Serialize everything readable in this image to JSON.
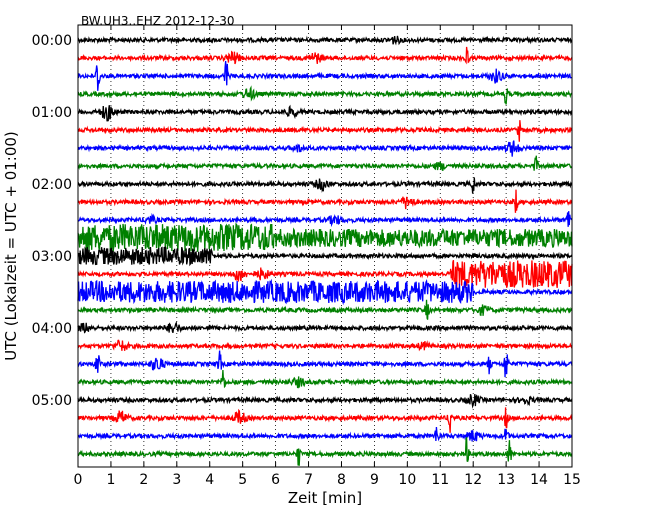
{
  "chart_data": {
    "type": "line",
    "title": "BW.UH3..EHZ 2012-12-30",
    "xlabel": "Zeit  [min]",
    "ylabel": "UTC (Lokalzeit = UTC + 01:00)",
    "xlim": [
      0,
      15
    ],
    "x_ticks": [
      "0",
      "1",
      "2",
      "3",
      "4",
      "5",
      "6",
      "7",
      "8",
      "9",
      "10",
      "11",
      "12",
      "13",
      "14",
      "15"
    ],
    "y_ticks": [
      {
        "label": "00:00",
        "line": 0
      },
      {
        "label": "01:00",
        "line": 4
      },
      {
        "label": "02:00",
        "line": 8
      },
      {
        "label": "03:00",
        "line": 12
      },
      {
        "label": "04:00",
        "line": 16
      },
      {
        "label": "05:00",
        "line": 20
      }
    ],
    "grid": "vertical dotted at each minute",
    "lines_per_hour": 4,
    "line_duration_min": 15,
    "colors": [
      "#000000",
      "#ff0000",
      "#0000ff",
      "#008000"
    ],
    "rows": [
      {
        "start": "00:00",
        "color_index": 0,
        "baseline": 2,
        "events": [
          {
            "t": 9.6,
            "amp": 3
          }
        ]
      },
      {
        "start": "00:15",
        "color_index": 1,
        "baseline": 2,
        "events": [
          {
            "t": 4.7,
            "amp": 6
          },
          {
            "t": 7.2,
            "amp": 5
          },
          {
            "t": 11.8,
            "amp": 12
          }
        ]
      },
      {
        "start": "00:30",
        "color_index": 2,
        "baseline": 2,
        "events": [
          {
            "t": 0.6,
            "amp": 20
          },
          {
            "t": 4.5,
            "amp": 18
          },
          {
            "t": 12.7,
            "amp": 6
          }
        ]
      },
      {
        "start": "00:45",
        "color_index": 3,
        "baseline": 2,
        "events": [
          {
            "t": 5.2,
            "amp": 5
          },
          {
            "t": 13.0,
            "amp": 10
          }
        ]
      },
      {
        "start": "01:00",
        "color_index": 0,
        "baseline": 2,
        "events": [
          {
            "t": 0.9,
            "amp": 8
          },
          {
            "t": 6.5,
            "amp": 4
          }
        ]
      },
      {
        "start": "01:15",
        "color_index": 1,
        "baseline": 2,
        "events": [
          {
            "t": 13.4,
            "amp": 10
          }
        ]
      },
      {
        "start": "01:30",
        "color_index": 2,
        "baseline": 2,
        "events": [
          {
            "t": 13.2,
            "amp": 7
          },
          {
            "t": 6.7,
            "amp": 3
          }
        ]
      },
      {
        "start": "01:45",
        "color_index": 3,
        "baseline": 2,
        "events": [
          {
            "t": 11.0,
            "amp": 3
          },
          {
            "t": 13.9,
            "amp": 10
          }
        ]
      },
      {
        "start": "02:00",
        "color_index": 0,
        "baseline": 2,
        "events": [
          {
            "t": 7.4,
            "amp": 5
          },
          {
            "t": 12.0,
            "amp": 10
          }
        ]
      },
      {
        "start": "02:15",
        "color_index": 1,
        "baseline": 2,
        "events": [
          {
            "t": 10.0,
            "amp": 6
          },
          {
            "t": 13.3,
            "amp": 12
          }
        ]
      },
      {
        "start": "02:30",
        "color_index": 2,
        "baseline": 2,
        "events": [
          {
            "t": 2.2,
            "amp": 3
          },
          {
            "t": 7.8,
            "amp": 4
          },
          {
            "t": 14.9,
            "amp": 14
          }
        ]
      },
      {
        "start": "02:45",
        "color_index": 3,
        "baseline": 2,
        "events": [],
        "noise_segments": [
          {
            "from": 0,
            "to": 6.0,
            "amp": 14
          },
          {
            "from": 6.0,
            "to": 15,
            "amp": 9
          }
        ]
      },
      {
        "start": "03:00",
        "color_index": 0,
        "baseline": 2,
        "events": [
          {
            "t": 3.6,
            "amp": 10
          }
        ],
        "noise_segments": [
          {
            "from": 0,
            "to": 4.1,
            "amp": 9
          }
        ]
      },
      {
        "start": "03:15",
        "color_index": 1,
        "baseline": 2,
        "events": [
          {
            "t": 4.9,
            "amp": 6
          },
          {
            "t": 5.6,
            "amp": 5
          }
        ],
        "noise_segments": [
          {
            "from": 11.3,
            "to": 15,
            "amp": 14
          }
        ]
      },
      {
        "start": "03:30",
        "color_index": 2,
        "baseline": 2,
        "events": [],
        "noise_segments": [
          {
            "from": 0,
            "to": 12.0,
            "amp": 11
          }
        ]
      },
      {
        "start": "03:45",
        "color_index": 3,
        "baseline": 2,
        "events": [
          {
            "t": 10.6,
            "amp": 10
          },
          {
            "t": 12.3,
            "amp": 4
          }
        ]
      },
      {
        "start": "04:00",
        "color_index": 0,
        "baseline": 2,
        "events": [
          {
            "t": 2.9,
            "amp": 5
          },
          {
            "t": 0.2,
            "amp": 4
          }
        ]
      },
      {
        "start": "04:15",
        "color_index": 1,
        "baseline": 2,
        "events": [
          {
            "t": 1.3,
            "amp": 5
          },
          {
            "t": 10.5,
            "amp": 3
          }
        ]
      },
      {
        "start": "04:30",
        "color_index": 2,
        "baseline": 2,
        "events": [
          {
            "t": 0.6,
            "amp": 20
          },
          {
            "t": 2.4,
            "amp": 7
          },
          {
            "t": 4.3,
            "amp": 12
          },
          {
            "t": 12.5,
            "amp": 10
          },
          {
            "t": 13.0,
            "amp": 22
          }
        ]
      },
      {
        "start": "04:45",
        "color_index": 3,
        "baseline": 2,
        "events": [
          {
            "t": 4.4,
            "amp": 14
          },
          {
            "t": 6.7,
            "amp": 4
          }
        ]
      },
      {
        "start": "05:00",
        "color_index": 0,
        "baseline": 2,
        "events": [
          {
            "t": 12.0,
            "amp": 5
          },
          {
            "t": 13.6,
            "amp": 3
          }
        ]
      },
      {
        "start": "05:15",
        "color_index": 1,
        "baseline": 2,
        "events": [
          {
            "t": 1.3,
            "amp": 6
          },
          {
            "t": 4.9,
            "amp": 6
          },
          {
            "t": 11.3,
            "amp": 18
          },
          {
            "t": 13.0,
            "amp": 10
          }
        ]
      },
      {
        "start": "05:30",
        "color_index": 2,
        "baseline": 2,
        "events": [
          {
            "t": 10.9,
            "amp": 12
          },
          {
            "t": 12.0,
            "amp": 5
          },
          {
            "t": 13.0,
            "amp": 10
          }
        ]
      },
      {
        "start": "05:45",
        "color_index": 3,
        "baseline": 2,
        "events": [
          {
            "t": 6.7,
            "amp": 12
          },
          {
            "t": 11.8,
            "amp": 16
          },
          {
            "t": 13.1,
            "amp": 14
          }
        ]
      }
    ]
  }
}
